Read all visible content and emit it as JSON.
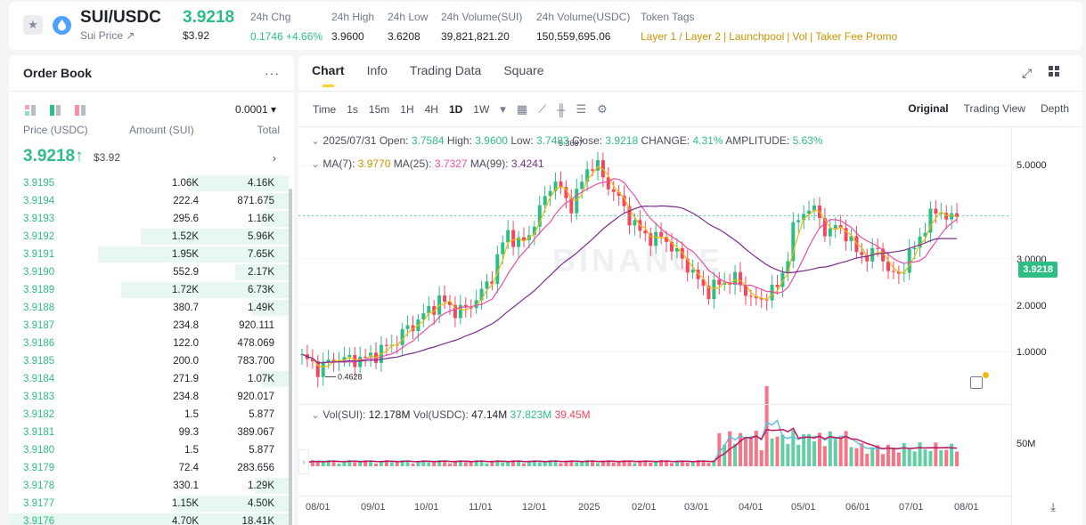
{
  "header": {
    "pair": "SUI/USDC",
    "subtitle": "Sui Price ↗",
    "last_price": "3.9218",
    "last_price_usd": "$3.92",
    "stats": [
      {
        "label": "24h Chg",
        "value": "0.1746 +4.66%",
        "color": "green"
      },
      {
        "label": "24h High",
        "value": "3.9600",
        "color": ""
      },
      {
        "label": "24h Low",
        "value": "3.6208",
        "color": ""
      },
      {
        "label": "24h Volume(SUI)",
        "value": "39,821,821.20",
        "color": ""
      },
      {
        "label": "24h Volume(USDC)",
        "value": "150,559,695.06",
        "color": ""
      }
    ],
    "token_tags_label": "Token Tags",
    "token_tags": [
      "Layer 1 / Layer 2",
      "Launchpool",
      "Vol",
      "Taker Fee Promo"
    ]
  },
  "orderbook": {
    "title": "Order Book",
    "more": "···",
    "tick_size": "0.0001 ▾",
    "col_price": "Price (USDC)",
    "col_amount": "Amount (SUI)",
    "col_total": "Total",
    "mid_price": "3.9218↑",
    "mid_price_usd": "$3.92",
    "rows": [
      {
        "price": "3.9195",
        "amount": "1.06K",
        "total": "4.16K",
        "depth": 0.36
      },
      {
        "price": "3.9194",
        "amount": "222.4",
        "total": "871.675",
        "depth": 0.08
      },
      {
        "price": "3.9193",
        "amount": "295.6",
        "total": "1.16K",
        "depth": 0.1
      },
      {
        "price": "3.9192",
        "amount": "1.52K",
        "total": "5.96K",
        "depth": 0.53
      },
      {
        "price": "3.9191",
        "amount": "1.95K",
        "total": "7.65K",
        "depth": 0.68
      },
      {
        "price": "3.9190",
        "amount": "552.9",
        "total": "2.17K",
        "depth": 0.19
      },
      {
        "price": "3.9189",
        "amount": "1.72K",
        "total": "6.73K",
        "depth": 0.6
      },
      {
        "price": "3.9188",
        "amount": "380.7",
        "total": "1.49K",
        "depth": 0.13
      },
      {
        "price": "3.9187",
        "amount": "234.8",
        "total": "920.111",
        "depth": 0.0
      },
      {
        "price": "3.9186",
        "amount": "122.0",
        "total": "478.069",
        "depth": 0.0
      },
      {
        "price": "3.9185",
        "amount": "200.0",
        "total": "783.700",
        "depth": 0.0
      },
      {
        "price": "3.9184",
        "amount": "271.9",
        "total": "1.07K",
        "depth": 0.1
      },
      {
        "price": "3.9183",
        "amount": "234.8",
        "total": "920.017",
        "depth": 0.0
      },
      {
        "price": "3.9182",
        "amount": "1.5",
        "total": "5.877",
        "depth": 0.0
      },
      {
        "price": "3.9181",
        "amount": "99.3",
        "total": "389.067",
        "depth": 0.0
      },
      {
        "price": "3.9180",
        "amount": "1.5",
        "total": "5.877",
        "depth": 0.0
      },
      {
        "price": "3.9179",
        "amount": "72.4",
        "total": "283.656",
        "depth": 0.0
      },
      {
        "price": "3.9178",
        "amount": "330.1",
        "total": "1.29K",
        "depth": 0.12
      },
      {
        "price": "3.9177",
        "amount": "1.15K",
        "total": "4.50K",
        "depth": 0.4
      },
      {
        "price": "3.9176",
        "amount": "4.70K",
        "total": "18.41K",
        "depth": 1.0
      }
    ]
  },
  "chart_panel": {
    "tabs": [
      "Chart",
      "Info",
      "Trading Data",
      "Square"
    ],
    "time_label": "Time",
    "timeframes": [
      "1s",
      "15m",
      "1H",
      "4H",
      "1D",
      "1W"
    ],
    "active_timeframe": "1D",
    "views": [
      "Original",
      "Trading View",
      "Depth"
    ],
    "ohlc": {
      "date": "2025/07/31",
      "open_label": "Open:",
      "open": "3.7584",
      "high_label": "High:",
      "high": "3.9600",
      "low_label": "Low:",
      "low": "3.7483",
      "close_label": "Close:",
      "close": "3.9218",
      "change_label": "CHANGE:",
      "change": "4.31%",
      "amp_label": "AMPLITUDE:",
      "amp": "5.63%"
    },
    "ma": {
      "ma7_label": "MA(7):",
      "ma7": "3.9770",
      "ma25_label": "MA(25):",
      "ma25": "3.7327",
      "ma99_label": "MA(99):",
      "ma99": "3.4241"
    },
    "vol": {
      "sui_label": "Vol(SUI):",
      "sui": "12.178M",
      "usdc_label": "Vol(USDC):",
      "usdc": "47.14M",
      "ma1": "37.823M",
      "ma2": "39.45M"
    },
    "current_price_tag": "3.9218",
    "max_marker": "5.3687",
    "min_marker": "0.4628",
    "vol_axis_label": "50M",
    "watermark": "BINANCE",
    "colors": {
      "up": "#2ebd85",
      "down": "#f6465d",
      "ma7": "#f0b90b",
      "ma25": "#e84fa6",
      "ma99": "#7b2d8e",
      "vol_ma1": "#5bc0de",
      "vol_ma2": "#c2185b"
    }
  },
  "chart_data": {
    "type": "candlestick",
    "x_ticks": [
      "08/01",
      "09/01",
      "10/01",
      "11/01",
      "12/01",
      "2025",
      "02/01",
      "03/01",
      "04/01",
      "05/01",
      "06/01",
      "07/01",
      "08/01"
    ],
    "y_ticks": [
      "5.0000",
      "3.0000",
      "2.0000",
      "1.0000"
    ],
    "ylim": [
      0,
      5.6
    ],
    "close_path": [
      0.85,
      0.78,
      0.6,
      0.75,
      0.9,
      0.8,
      0.85,
      0.82,
      0.9,
      1.0,
      1.1,
      1.25,
      1.45,
      1.6,
      1.75,
      1.95,
      2.1,
      2.0,
      1.85,
      1.9,
      2.1,
      2.3,
      2.6,
      3.2,
      3.6,
      3.3,
      3.4,
      3.8,
      4.2,
      4.7,
      4.5,
      4.1,
      4.4,
      4.9,
      5.1,
      4.7,
      4.5,
      4.2,
      3.9,
      3.6,
      3.5,
      3.4,
      3.5,
      3.2,
      3.0,
      2.8,
      2.5,
      2.3,
      2.4,
      2.5,
      2.6,
      2.4,
      2.2,
      2.0,
      2.3,
      2.3,
      2.8,
      3.6,
      4.0,
      4.1,
      3.9,
      3.5,
      3.7,
      3.6,
      3.2,
      3.1,
      3.0,
      3.3,
      2.7,
      2.6,
      2.9,
      3.2,
      3.6,
      3.9,
      4.1,
      3.8,
      3.9218
    ]
  }
}
